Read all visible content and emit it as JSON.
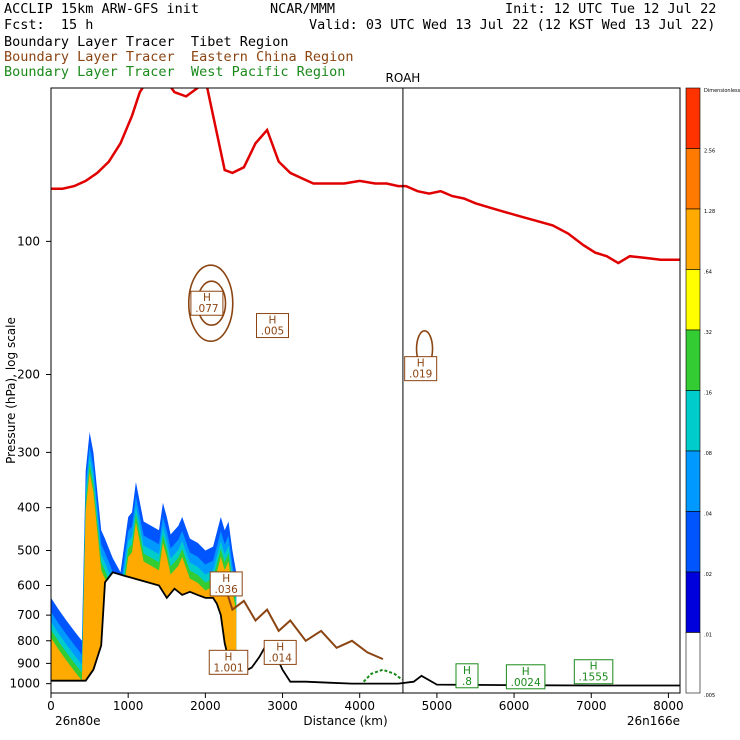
{
  "header": {
    "model": "ACCLIP 15km ARW-GFS init",
    "org": "NCAR/MMM",
    "init": "Init: 12 UTC Tue 12 Jul 22",
    "fcst": "Fcst:  15 h",
    "valid": "Valid: 03 UTC Wed 13 Jul 22 (12 KST Wed 13 Jul 22)",
    "tracer1": "Boundary Layer Tracer  Tibet Region",
    "tracer2": "Boundary Layer Tracer  Eastern China Region",
    "tracer3": "Boundary Layer Tracer  West Pacific Region"
  },
  "colors": {
    "tibet": "#000000",
    "eastern_china": "#8b4513",
    "west_pacific": "#1a8a1a",
    "tropopause": "#e00000",
    "terrain": "#000000"
  },
  "chart_data": {
    "type": "contour-cross-section",
    "xlabel": "Distance (km)",
    "ylabel": "Pressure (hPa), log scale",
    "xlim": [
      0,
      8150
    ],
    "ylim": [
      1050,
      45
    ],
    "y_scale": "log",
    "x_ticks": [
      0,
      1000,
      2000,
      3000,
      4000,
      5000,
      6000,
      7000,
      8000
    ],
    "x_tick_labels": [
      "0",
      "1000",
      "2000",
      "3000",
      "4000",
      "5000",
      "6000",
      "7000",
      "8000"
    ],
    "y_ticks": [
      100,
      200,
      300,
      400,
      500,
      600,
      700,
      800,
      900,
      1000
    ],
    "y_tick_labels": [
      "100",
      "200",
      "300",
      "400",
      "500",
      "600",
      "700",
      "800",
      "900",
      "1000"
    ],
    "endpoint_left": "26n80e",
    "endpoint_right": "26n166e",
    "vertical_line": {
      "label": "ROAH",
      "x": 4560
    },
    "colorbar": {
      "levels": [
        "Dimensionless",
        "2.56",
        "1.28",
        ".64",
        ".32",
        ".16",
        ".08",
        ".04",
        ".02",
        ".01",
        ".005"
      ],
      "colors": [
        "#ff3300",
        "#ff7a00",
        "#ffaa00",
        "#ffff00",
        "#33cc33",
        "#00cccc",
        "#0099ff",
        "#0055ff",
        "#0000dd",
        "#ffffff"
      ]
    },
    "tropopause_line": {
      "x": [
        0,
        150,
        300,
        450,
        600,
        750,
        900,
        1050,
        1150,
        1300,
        1450,
        1520,
        1600,
        1750,
        1900,
        2000,
        2150,
        2250,
        2350,
        2500,
        2650,
        2800,
        2950,
        3100,
        3250,
        3400,
        3600,
        3800,
        4000,
        4200,
        4350,
        4500,
        4600,
        4750,
        4900,
        5050,
        5200,
        5350,
        5500,
        5700,
        5900,
        6100,
        6300,
        6500,
        6700,
        6900,
        7050,
        7200,
        7350,
        7500,
        7700,
        7900,
        8150
      ],
      "p": [
        76,
        76,
        75,
        73,
        70,
        66,
        60,
        52,
        46,
        42,
        43,
        44,
        46,
        47,
        45,
        43,
        57,
        69,
        70,
        68,
        60,
        56,
        66,
        70,
        72,
        74,
        74,
        74,
        73,
        74,
        74,
        75,
        75,
        77,
        78,
        77,
        79,
        80,
        82,
        84,
        86,
        88,
        90,
        92,
        96,
        102,
        106,
        108,
        112,
        108,
        109,
        110,
        110
      ]
    },
    "terrain_line": {
      "x": [
        0,
        150,
        300,
        450,
        550,
        650,
        700,
        800,
        950,
        1100,
        1250,
        1400,
        1500,
        1600,
        1700,
        1800,
        1900,
        2000,
        2100,
        2150,
        2200,
        2250,
        2300,
        2400,
        2500,
        2600,
        2700,
        2800,
        2900,
        3000,
        3100,
        3300,
        3600,
        3900,
        4200,
        4400,
        4500,
        4700,
        4800,
        5000,
        6000,
        7000,
        8150
      ],
      "p": [
        985,
        985,
        985,
        985,
        930,
        820,
        590,
        560,
        570,
        580,
        590,
        600,
        640,
        610,
        630,
        620,
        630,
        640,
        640,
        660,
        700,
        810,
        880,
        930,
        940,
        920,
        870,
        810,
        850,
        930,
        990,
        990,
        995,
        1000,
        1000,
        1000,
        1000,
        990,
        960,
        1005,
        1008,
        1010,
        1010
      ]
    },
    "shading_upper_boundary": {
      "x": [
        0,
        100,
        200,
        300,
        400,
        450,
        500,
        550,
        650,
        700,
        800,
        900,
        1000,
        1050,
        1100,
        1200,
        1300,
        1400,
        1450,
        1500,
        1550,
        1650,
        1700,
        1800,
        1900,
        2000,
        2100,
        2200,
        2250,
        2300,
        2350,
        2400
      ],
      "p": [
        640,
        680,
        720,
        760,
        800,
        330,
        270,
        300,
        450,
        470,
        520,
        560,
        420,
        410,
        350,
        430,
        440,
        450,
        390,
        420,
        460,
        440,
        420,
        470,
        480,
        500,
        490,
        420,
        450,
        430,
        500,
        560
      ]
    },
    "annotations": [
      {
        "label": "H .077",
        "x": 2020,
        "p": 138,
        "tracer": "eastern_china"
      },
      {
        "label": "H .005",
        "x": 2870,
        "p": 155,
        "tracer": "eastern_china"
      },
      {
        "label": "H .019",
        "x": 4790,
        "p": 194,
        "tracer": "eastern_china"
      },
      {
        "label": "H .036",
        "x": 2270,
        "p": 595,
        "tracer": "eastern_china"
      },
      {
        "label": "H 1.001",
        "x": 2300,
        "p": 895,
        "tracer": "eastern_china"
      },
      {
        "label": "H .014",
        "x": 2970,
        "p": 850,
        "tracer": "eastern_china"
      },
      {
        "label": "H .8",
        "x": 5390,
        "p": 960,
        "tracer": "west_pacific"
      },
      {
        "label": "H .0024",
        "x": 6150,
        "p": 965,
        "tracer": "west_pacific"
      },
      {
        "label": "H .1555",
        "x": 7030,
        "p": 940,
        "tracer": "west_pacific"
      }
    ]
  }
}
